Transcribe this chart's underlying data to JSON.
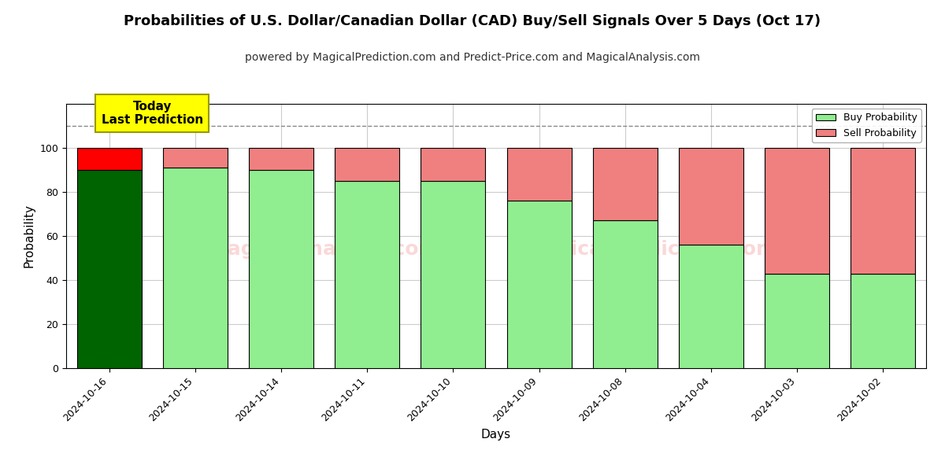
{
  "title": "Probabilities of U.S. Dollar/Canadian Dollar (CAD) Buy/Sell Signals Over 5 Days (Oct 17)",
  "subtitle": "powered by MagicalPrediction.com and Predict-Price.com and MagicalAnalysis.com",
  "xlabel": "Days",
  "ylabel": "Probability",
  "categories": [
    "2024-10-16",
    "2024-10-15",
    "2024-10-14",
    "2024-10-11",
    "2024-10-10",
    "2024-10-09",
    "2024-10-08",
    "2024-10-04",
    "2024-10-03",
    "2024-10-02"
  ],
  "buy_values": [
    90,
    91,
    90,
    85,
    85,
    76,
    67,
    56,
    43,
    43
  ],
  "sell_values": [
    10,
    9,
    10,
    15,
    15,
    24,
    33,
    44,
    57,
    57
  ],
  "buy_color_today": "#006400",
  "sell_color_today": "#FF0000",
  "buy_color_normal": "#90EE90",
  "sell_color_normal": "#F08080",
  "bar_edge_color": "#000000",
  "bar_edge_width": 0.8,
  "ylim": [
    0,
    120
  ],
  "yticks": [
    0,
    20,
    40,
    60,
    80,
    100
  ],
  "dashed_line_y": 110,
  "dashed_line_color": "#888888",
  "grid_color": "#cccccc",
  "background_color": "#ffffff",
  "today_label": "Today\nLast Prediction",
  "today_label_bg": "#FFFF00",
  "legend_buy_label": "Buy Probability",
  "legend_sell_label": "Sell Probability",
  "title_fontsize": 13,
  "subtitle_fontsize": 10,
  "axis_label_fontsize": 11,
  "tick_fontsize": 9,
  "bar_width": 0.75
}
